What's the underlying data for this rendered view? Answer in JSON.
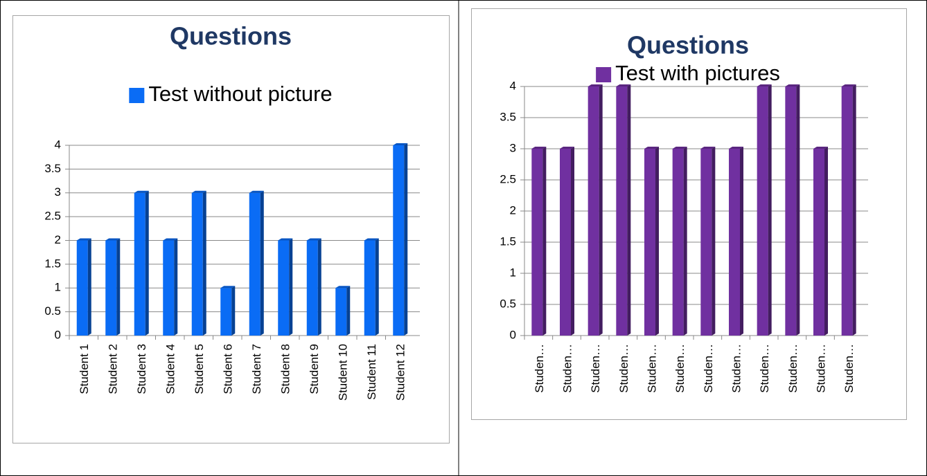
{
  "chart_data": [
    {
      "type": "bar",
      "title": "Questions",
      "categories": [
        "Student 1",
        "Student 2",
        "Student 3",
        "Student 4",
        "Student 5",
        "Student 6",
        "Student 7",
        "Student 8",
        "Student 9",
        "Student 10",
        "Student 11",
        "Student 12"
      ],
      "series": [
        {
          "name": "Test without picture",
          "color": "#0a6cf5",
          "values": [
            2,
            2,
            3,
            2,
            3,
            1,
            3,
            2,
            2,
            1,
            2,
            4
          ]
        }
      ],
      "ylim": [
        0,
        4
      ],
      "yticks": [
        0,
        0.5,
        1,
        1.5,
        2,
        2.5,
        3,
        3.5,
        4
      ],
      "grid": true,
      "legend": "top"
    },
    {
      "type": "bar",
      "title": "Questions",
      "categories": [
        "Studen…",
        "Studen…",
        "Studen…",
        "Studen…",
        "Studen…",
        "Studen…",
        "Studen…",
        "Studen…",
        "Studen…",
        "Studen…",
        "Studen…",
        "Studen…"
      ],
      "series": [
        {
          "name": "Test with pictures",
          "color": "#7030a0",
          "values": [
            3,
            3,
            4,
            4,
            3,
            3,
            3,
            3,
            4,
            4,
            3,
            4
          ]
        }
      ],
      "ylim": [
        0,
        4
      ],
      "yticks": [
        0,
        0.5,
        1,
        1.5,
        2,
        2.5,
        3,
        3.5,
        4
      ],
      "grid": true,
      "legend": "top"
    }
  ]
}
